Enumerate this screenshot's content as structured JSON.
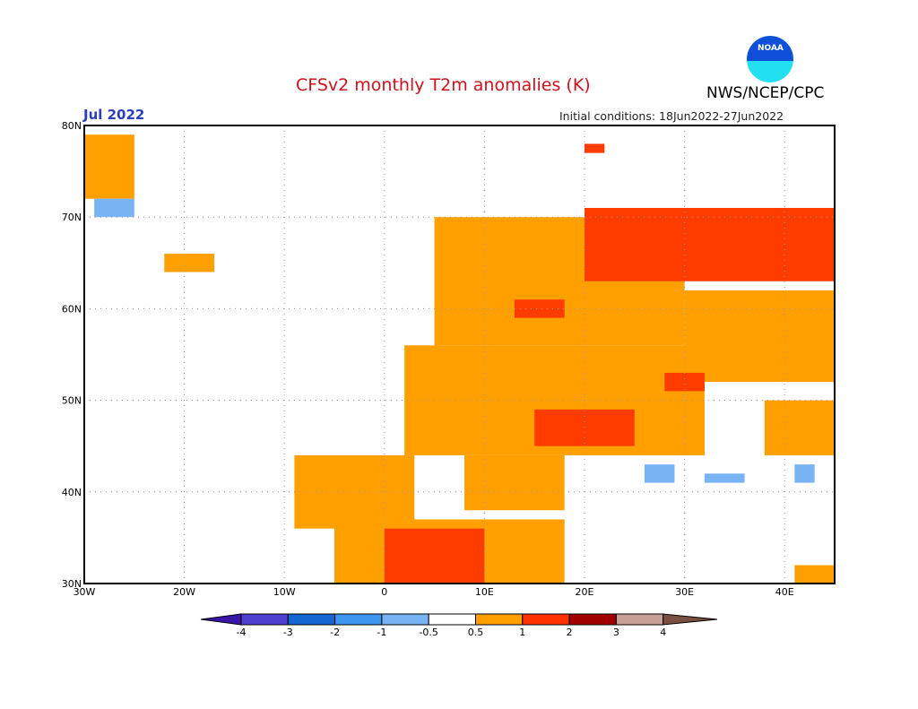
{
  "header": {
    "title": "CFSv2 monthly T2m anomalies (K)",
    "agency": "NWS/NCEP/CPC",
    "logo_text": "NOAA",
    "month": "Jul 2022",
    "initial_conditions": "Initial conditions: 18Jun2022-27Jun2022"
  },
  "map": {
    "lon_range": [
      -30,
      45
    ],
    "lat_range": [
      30,
      80
    ],
    "lat_labels": [
      {
        "v": 80,
        "t": "80N"
      },
      {
        "v": 70,
        "t": "70N"
      },
      {
        "v": 60,
        "t": "60N"
      },
      {
        "v": 50,
        "t": "50N"
      },
      {
        "v": 40,
        "t": "40N"
      },
      {
        "v": 30,
        "t": "30N"
      }
    ],
    "lon_labels": [
      {
        "v": -30,
        "t": "30W"
      },
      {
        "v": -20,
        "t": "20W"
      },
      {
        "v": -10,
        "t": "10W"
      },
      {
        "v": 0,
        "t": "0"
      },
      {
        "v": 10,
        "t": "10E"
      },
      {
        "v": 20,
        "t": "20E"
      },
      {
        "v": 30,
        "t": "30E"
      },
      {
        "v": 40,
        "t": "40E"
      }
    ],
    "anomaly_regions": [
      {
        "cls": "0.5-1",
        "lon": [
          -30,
          -25
        ],
        "lat": [
          72,
          79
        ]
      },
      {
        "cls": "0.5-1",
        "lon": [
          -22,
          -17
        ],
        "lat": [
          64,
          66
        ]
      },
      {
        "cls": "0.5-1",
        "lon": [
          5,
          30
        ],
        "lat": [
          56,
          70
        ]
      },
      {
        "cls": "0.5-1",
        "lon": [
          2,
          32
        ],
        "lat": [
          44,
          56
        ]
      },
      {
        "cls": "0.5-1",
        "lon": [
          30,
          45
        ],
        "lat": [
          52,
          62
        ]
      },
      {
        "cls": "0.5-1",
        "lon": [
          38,
          45
        ],
        "lat": [
          44,
          50
        ]
      },
      {
        "cls": "0.5-1",
        "lon": [
          -9,
          3
        ],
        "lat": [
          36,
          44
        ]
      },
      {
        "cls": "0.5-1",
        "lon": [
          8,
          18
        ],
        "lat": [
          38,
          44
        ]
      },
      {
        "cls": "0.5-1",
        "lon": [
          -5,
          18
        ],
        "lat": [
          30,
          37
        ]
      },
      {
        "cls": "0.5-1",
        "lon": [
          41,
          45
        ],
        "lat": [
          30,
          32
        ]
      },
      {
        "cls": "1-2",
        "lon": [
          20,
          45
        ],
        "lat": [
          63,
          71
        ]
      },
      {
        "cls": "1-2",
        "lon": [
          15,
          25
        ],
        "lat": [
          45,
          49
        ]
      },
      {
        "cls": "1-2",
        "lon": [
          28,
          32
        ],
        "lat": [
          51,
          53
        ]
      },
      {
        "cls": "1-2",
        "lon": [
          0,
          10
        ],
        "lat": [
          30,
          36
        ]
      },
      {
        "cls": "1-2",
        "lon": [
          13,
          18
        ],
        "lat": [
          59,
          61
        ]
      },
      {
        "cls": "1-2",
        "lon": [
          20,
          22
        ],
        "lat": [
          77,
          78
        ]
      },
      {
        "cls": "-1--0.5",
        "lon": [
          -29,
          -25
        ],
        "lat": [
          70,
          72
        ]
      },
      {
        "cls": "-1--0.5",
        "lon": [
          26,
          29
        ],
        "lat": [
          41,
          43
        ]
      },
      {
        "cls": "-1--0.5",
        "lon": [
          32,
          36
        ],
        "lat": [
          41,
          42
        ]
      },
      {
        "cls": "-1--0.5",
        "lon": [
          41,
          43
        ],
        "lat": [
          41,
          43
        ]
      }
    ],
    "class_colors": {
      "0.5-1": "#ffa000",
      "1-2": "#ff3c00",
      "-1--0.5": "#78b4f4"
    }
  },
  "colorbar": {
    "labels": [
      "-4",
      "-3",
      "-2",
      "-1",
      "-0.5",
      "0.5",
      "1",
      "2",
      "3",
      "4"
    ],
    "colors": [
      "#3a14a8",
      "#5040d0",
      "#1464d2",
      "#3c96f0",
      "#78b4f4",
      "#ffffff",
      "#ffa000",
      "#ff3200",
      "#a00000",
      "#c8a096",
      "#7a5040"
    ]
  }
}
